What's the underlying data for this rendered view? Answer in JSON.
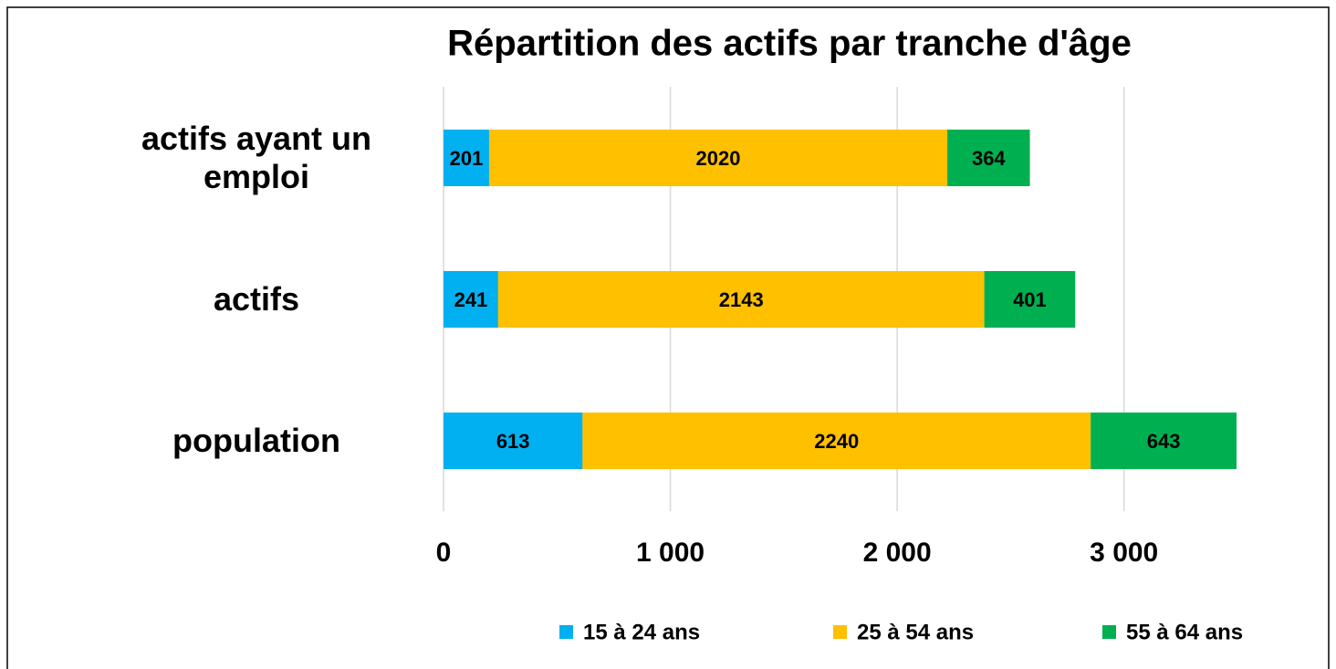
{
  "chart_data": {
    "type": "stacked_barh",
    "title": "Répartition des actifs par tranche d'âge",
    "categories": [
      "actifs ayant un emploi",
      "actifs",
      "population"
    ],
    "series": [
      {
        "name": "15 à 24 ans",
        "color": "#00b0f0",
        "values": [
          201,
          241,
          613
        ]
      },
      {
        "name": "25 à 54 ans",
        "color": "#ffc000",
        "values": [
          2020,
          2143,
          2240
        ]
      },
      {
        "name": "55 à 64 ans",
        "color": "#00b050",
        "values": [
          364,
          401,
          643
        ]
      }
    ],
    "xlim": [
      0,
      3500
    ],
    "xticks": [
      0,
      {
        "value": 1000,
        "label": "1 000"
      },
      {
        "value": 2000,
        "label": "2 000"
      },
      {
        "value": 3000,
        "label": "3 000"
      }
    ],
    "grid": true,
    "legend": "bottom"
  }
}
